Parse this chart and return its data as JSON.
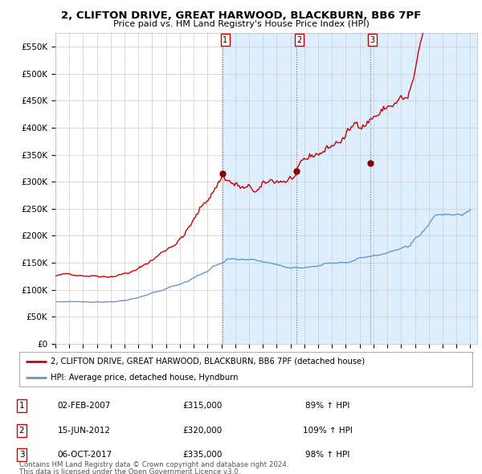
{
  "title": "2, CLIFTON DRIVE, GREAT HARWOOD, BLACKBURN, BB6 7PF",
  "subtitle": "Price paid vs. HM Land Registry's House Price Index (HPI)",
  "ylim": [
    0,
    575000
  ],
  "yticks": [
    0,
    50000,
    100000,
    150000,
    200000,
    250000,
    300000,
    350000,
    400000,
    450000,
    500000,
    550000
  ],
  "ytick_labels": [
    "£0",
    "£50K",
    "£100K",
    "£150K",
    "£200K",
    "£250K",
    "£300K",
    "£350K",
    "£400K",
    "£450K",
    "£500K",
    "£550K"
  ],
  "purchases": [
    {
      "date_num": 2007.1,
      "price": 315000,
      "label": "1",
      "hpi_pct": "89%",
      "date_str": "02-FEB-2007"
    },
    {
      "date_num": 2012.45,
      "price": 320000,
      "label": "2",
      "hpi_pct": "109%",
      "date_str": "15-JUN-2012"
    },
    {
      "date_num": 2017.76,
      "price": 335000,
      "label": "3",
      "hpi_pct": "98%",
      "date_str": "06-OCT-2017"
    }
  ],
  "red_color": "#cc0000",
  "blue_color": "#6699cc",
  "dot_color": "#880000",
  "dashed_color": "#dd4444",
  "background_color": "#ffffff",
  "highlight_color": "#ddeeff",
  "grid_color": "#cccccc",
  "legend_label_red": "2, CLIFTON DRIVE, GREAT HARWOOD, BLACKBURN, BB6 7PF (detached house)",
  "legend_label_blue": "HPI: Average price, detached house, Hyndburn",
  "footer1": "Contains HM Land Registry data © Crown copyright and database right 2024.",
  "footer2": "This data is licensed under the Open Government Licence v3.0."
}
